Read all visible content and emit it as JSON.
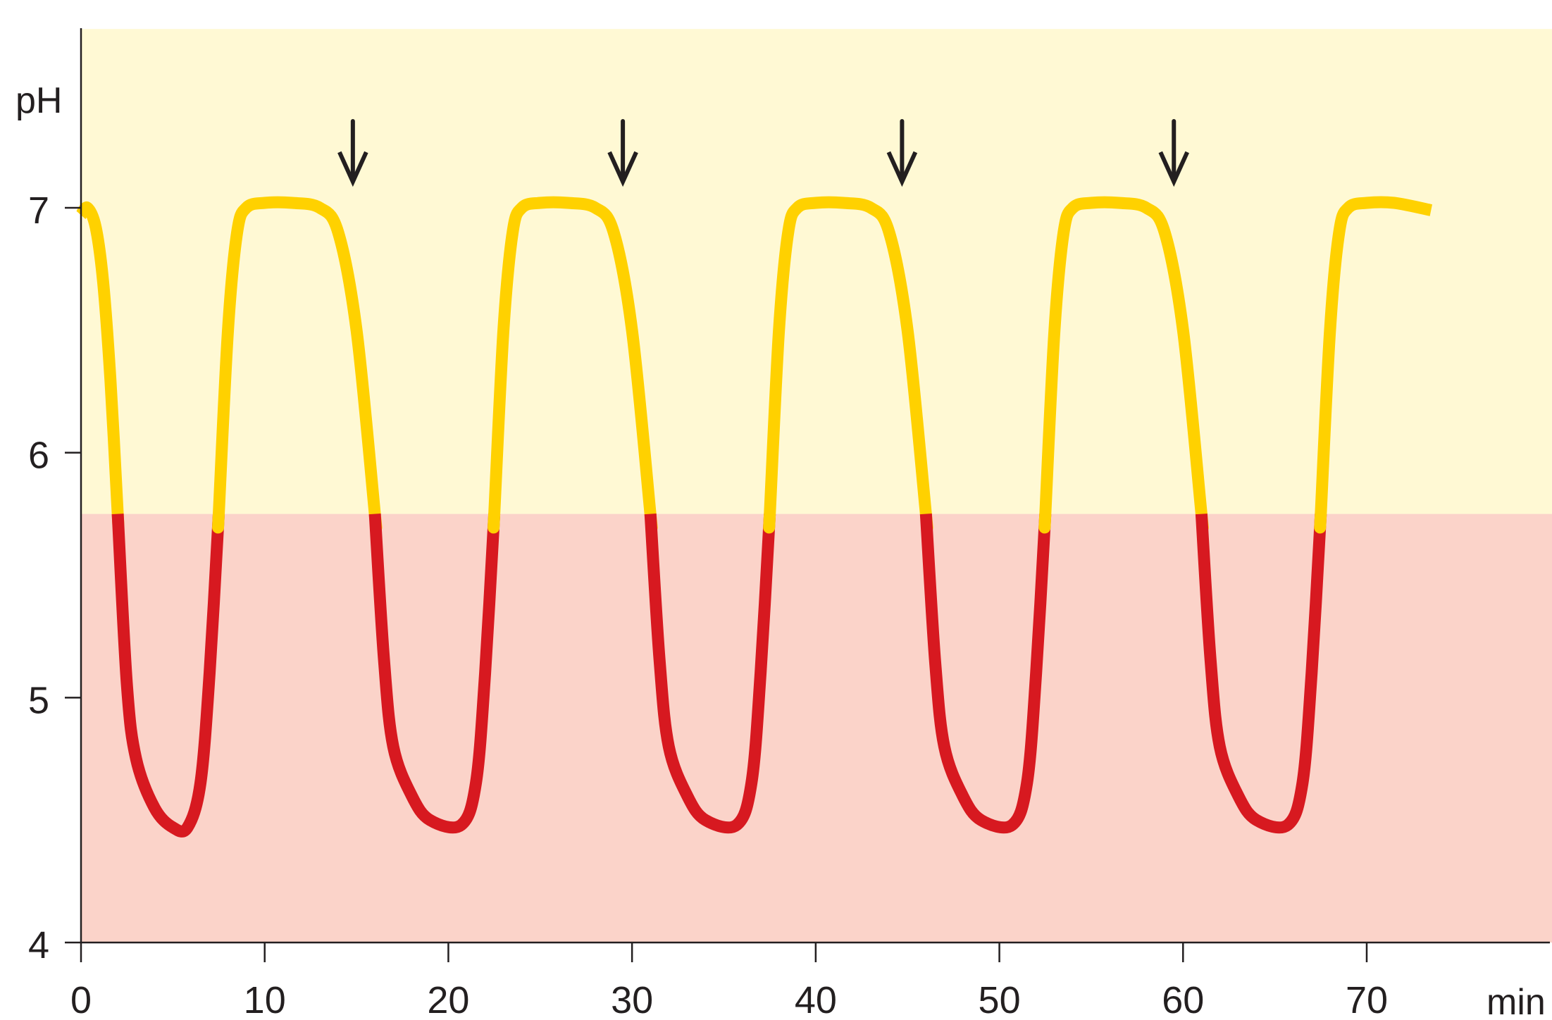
{
  "chart_data": {
    "type": "line",
    "title": "",
    "xlabel": "min",
    "ylabel": "pH",
    "xlim": [
      0,
      80
    ],
    "ylim": [
      4,
      7.73
    ],
    "grid": false,
    "legend": "none",
    "x_ticks": [
      0,
      10,
      20,
      30,
      40,
      50,
      60,
      70
    ],
    "x_tick_labels": [
      "0",
      "10",
      "20",
      "30",
      "40",
      "50",
      "60",
      "70"
    ],
    "y_ticks": [
      4,
      5,
      6,
      7
    ],
    "y_tick_labels": [
      "4",
      "5",
      "6",
      "7"
    ],
    "threshold_ph": 5.75,
    "colors": {
      "above_threshold_line": "#ffd100",
      "below_threshold_line": "#d71920",
      "above_threshold_band": "#fff9d4",
      "below_threshold_band": "#fbd3c9",
      "axis": "#231f20",
      "arrow": "#231f20"
    },
    "series": [
      {
        "points": [
          [
            0,
            6.97
          ],
          [
            0.35,
            7.0
          ],
          [
            0.8,
            6.92
          ],
          [
            1.2,
            6.7
          ],
          [
            1.6,
            6.3
          ],
          [
            2.0,
            5.75
          ],
          [
            2.5,
            5.05
          ],
          [
            3.0,
            4.75
          ],
          [
            4.0,
            4.55
          ],
          [
            5.0,
            4.47
          ],
          [
            5.8,
            4.47
          ],
          [
            6.5,
            4.65
          ],
          [
            7.0,
            5.1
          ],
          [
            7.5,
            5.75
          ],
          [
            8.0,
            6.5
          ],
          [
            8.5,
            6.9
          ],
          [
            9.0,
            7.0
          ],
          [
            10.0,
            7.02
          ],
          [
            11.5,
            7.02
          ],
          [
            13.0,
            7.0
          ],
          [
            14.0,
            6.9
          ],
          [
            15.0,
            6.5
          ],
          [
            16.0,
            5.75
          ],
          [
            16.5,
            5.15
          ],
          [
            17.0,
            4.8
          ],
          [
            18.0,
            4.6
          ],
          [
            19.0,
            4.5
          ],
          [
            20.7,
            4.48
          ],
          [
            21.5,
            4.65
          ],
          [
            22.0,
            5.1
          ],
          [
            22.5,
            5.75
          ],
          [
            23.0,
            6.5
          ],
          [
            23.5,
            6.9
          ],
          [
            24.0,
            7.0
          ],
          [
            25.0,
            7.02
          ],
          [
            26.5,
            7.02
          ],
          [
            28.0,
            7.0
          ],
          [
            29.0,
            6.9
          ],
          [
            30.0,
            6.5
          ],
          [
            31.0,
            5.75
          ],
          [
            31.5,
            5.15
          ],
          [
            32.0,
            4.8
          ],
          [
            33.0,
            4.6
          ],
          [
            34.0,
            4.5
          ],
          [
            35.7,
            4.48
          ],
          [
            36.5,
            4.65
          ],
          [
            37.0,
            5.1
          ],
          [
            37.5,
            5.75
          ],
          [
            38.0,
            6.5
          ],
          [
            38.5,
            6.9
          ],
          [
            39.0,
            7.0
          ],
          [
            40.0,
            7.02
          ],
          [
            41.5,
            7.02
          ],
          [
            43.0,
            7.0
          ],
          [
            44.0,
            6.9
          ],
          [
            45.0,
            6.5
          ],
          [
            46.0,
            5.75
          ],
          [
            46.5,
            5.15
          ],
          [
            47.0,
            4.8
          ],
          [
            48.0,
            4.6
          ],
          [
            49.0,
            4.5
          ],
          [
            50.7,
            4.48
          ],
          [
            51.5,
            4.65
          ],
          [
            52.0,
            5.1
          ],
          [
            52.5,
            5.75
          ],
          [
            53.0,
            6.5
          ],
          [
            53.5,
            6.9
          ],
          [
            54.0,
            7.0
          ],
          [
            55.0,
            7.02
          ],
          [
            56.5,
            7.02
          ],
          [
            58.0,
            7.0
          ],
          [
            59.0,
            6.9
          ],
          [
            60.0,
            6.5
          ],
          [
            61.0,
            5.75
          ],
          [
            61.5,
            5.15
          ],
          [
            62.0,
            4.8
          ],
          [
            63.0,
            4.6
          ],
          [
            64.0,
            4.5
          ],
          [
            65.7,
            4.48
          ],
          [
            66.5,
            4.65
          ],
          [
            67.0,
            5.1
          ],
          [
            67.5,
            5.75
          ],
          [
            68.0,
            6.5
          ],
          [
            68.5,
            6.9
          ],
          [
            69.0,
            7.0
          ],
          [
            70.0,
            7.02
          ],
          [
            71.5,
            7.02
          ],
          [
            73.5,
            6.99
          ]
        ]
      }
    ],
    "annotations": [
      {
        "type": "arrow-down",
        "x": 14.8
      },
      {
        "type": "arrow-down",
        "x": 29.5
      },
      {
        "type": "arrow-down",
        "x": 44.7
      },
      {
        "type": "arrow-down",
        "x": 59.5
      }
    ]
  }
}
